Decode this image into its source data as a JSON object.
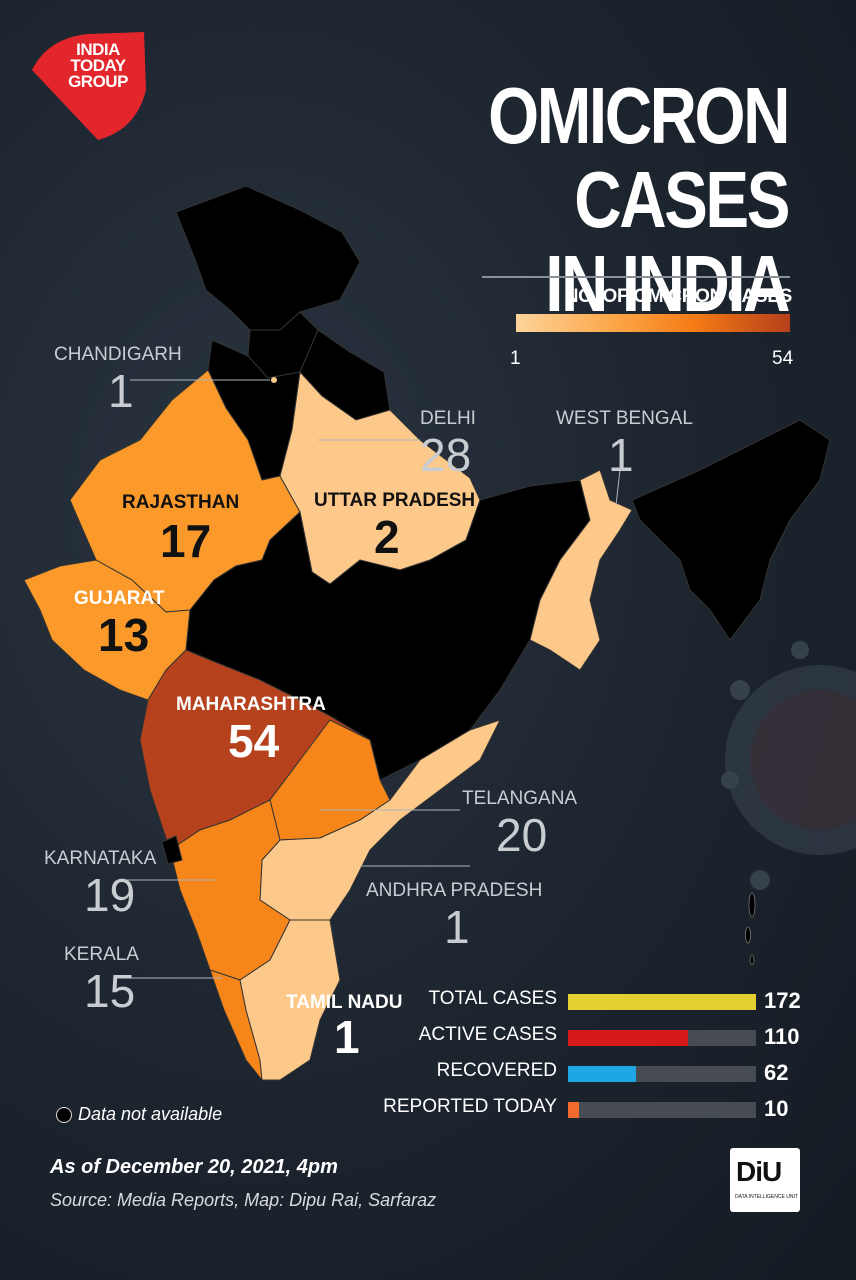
{
  "header": {
    "logo_text": "INDIA TODAY GROUP",
    "title_line1": "OMICRON CASES",
    "title_line2": "IN INDIA"
  },
  "legend": {
    "title": "NO. OF OMICRON CASES",
    "min": "1",
    "max": "54",
    "colors": [
      "#fdd39a",
      "#fba84a",
      "#f57b15",
      "#b5401b"
    ]
  },
  "states": {
    "chandigarh": {
      "name": "CHANDIGARH",
      "cases": "1"
    },
    "delhi": {
      "name": "DELHI",
      "cases": "28"
    },
    "west_bengal": {
      "name": "WEST BENGAL",
      "cases": "1"
    },
    "rajasthan": {
      "name": "RAJASTHAN",
      "cases": "17"
    },
    "uttar_pradesh": {
      "name": "UTTAR PRADESH",
      "cases": "2"
    },
    "gujarat": {
      "name": "GUJARAT",
      "cases": "13"
    },
    "maharashtra": {
      "name": "MAHARASHTRA",
      "cases": "54"
    },
    "telangana": {
      "name": "TELANGANA",
      "cases": "20"
    },
    "karnataka": {
      "name": "KARNATAKA",
      "cases": "19"
    },
    "andhra_pradesh": {
      "name": "ANDHRA PRADESH",
      "cases": "1"
    },
    "kerala": {
      "name": "KERALA",
      "cases": "15"
    },
    "tamil_nadu": {
      "name": "TAMIL NADU",
      "cases": "1"
    }
  },
  "stats": [
    {
      "label": "TOTAL CASES",
      "value": "172",
      "fraction": 1.0,
      "color": "#e3cf2f"
    },
    {
      "label": "ACTIVE CASES",
      "value": "110",
      "fraction": 0.64,
      "color": "#d6191b"
    },
    {
      "label": "RECOVERED",
      "value": "62",
      "fraction": 0.36,
      "color": "#1fa6e5"
    },
    {
      "label": "REPORTED TODAY",
      "value": "10",
      "fraction": 0.058,
      "color": "#f26a2e"
    }
  ],
  "footer": {
    "not_available": "Data not available",
    "as_of": "As of December 20, 2021, 4pm",
    "source": "Source:  Media Reports, Map: Dipu Rai, Sarfaraz",
    "badge_text": "DiU",
    "badge_sub": "DATA INTELLIGENCE UNIT"
  },
  "colors": {
    "no_data": "#000000",
    "light": "#fdc98a",
    "mid": "#fb9a2a",
    "orange": "#f7861a",
    "dark": "#b5421c"
  }
}
